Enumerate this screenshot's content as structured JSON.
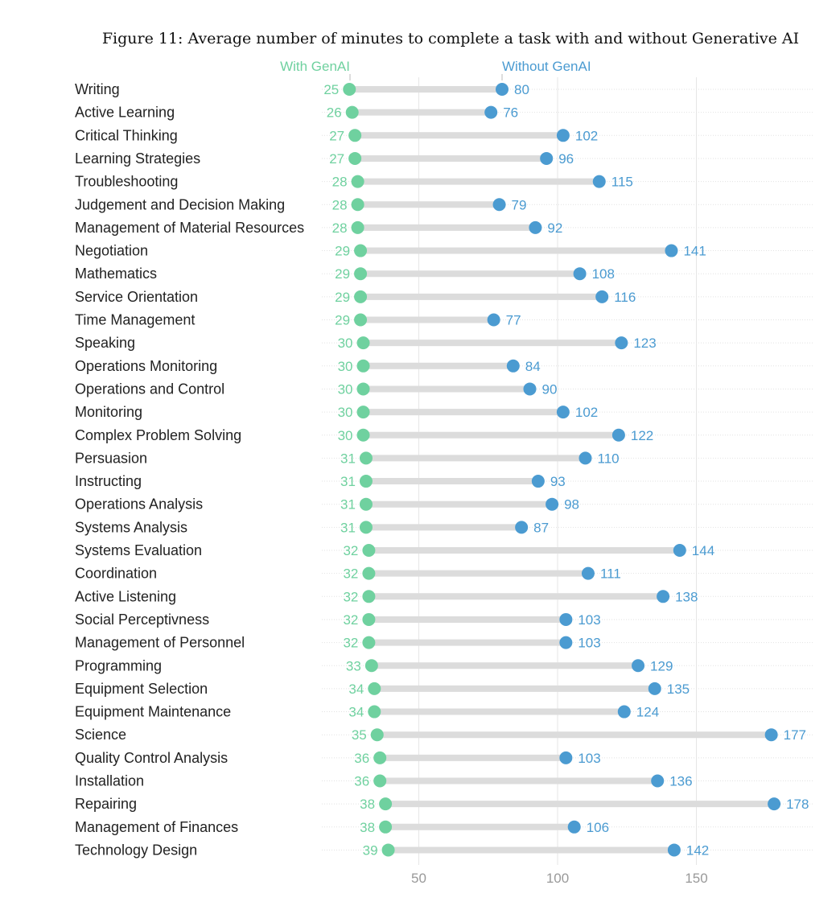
{
  "chart_data": {
    "type": "dumbbell",
    "title": "Figure 11: Average number of minutes to complete a task with and without Generative AI",
    "xlabel": "",
    "ylabel": "",
    "xticks": [
      50,
      100,
      150
    ],
    "xlim": [
      0,
      190
    ],
    "legend": [
      "With GenAI",
      "Without GenAI"
    ],
    "colors": {
      "with": "#6fd19f",
      "without": "#4b9bd1",
      "bar": "#dcdcdc",
      "grid": "#e6e6e6"
    },
    "categories": [
      "Writing",
      "Active Learning",
      "Critical Thinking",
      "Learning Strategies",
      "Troubleshooting",
      "Judgement and Decision Making",
      "Management of Material Resources",
      "Negotiation",
      "Mathematics",
      "Service Orientation",
      "Time Management",
      "Speaking",
      "Operations Monitoring",
      "Operations and Control",
      "Monitoring",
      "Complex Problem Solving",
      "Persuasion",
      "Instructing",
      "Operations Analysis",
      "Systems Analysis",
      "Systems Evaluation",
      "Coordination",
      "Active Listening",
      "Social Perceptivness",
      "Management of Personnel",
      "Programming",
      "Equipment Selection",
      "Equipment Maintenance",
      "Science",
      "Quality Control Analysis",
      "Installation",
      "Repairing",
      "Management of Finances",
      "Technology Design"
    ],
    "series": [
      {
        "name": "With GenAI",
        "values": [
          25,
          26,
          27,
          27,
          28,
          28,
          28,
          29,
          29,
          29,
          29,
          30,
          30,
          30,
          30,
          30,
          31,
          31,
          31,
          31,
          32,
          32,
          32,
          32,
          32,
          33,
          34,
          34,
          35,
          36,
          36,
          38,
          38,
          39
        ]
      },
      {
        "name": "Without GenAI",
        "values": [
          80,
          76,
          102,
          96,
          115,
          79,
          92,
          141,
          108,
          116,
          77,
          123,
          84,
          90,
          102,
          122,
          110,
          93,
          98,
          87,
          144,
          111,
          138,
          103,
          103,
          129,
          135,
          124,
          177,
          103,
          136,
          178,
          106,
          142
        ]
      }
    ]
  }
}
